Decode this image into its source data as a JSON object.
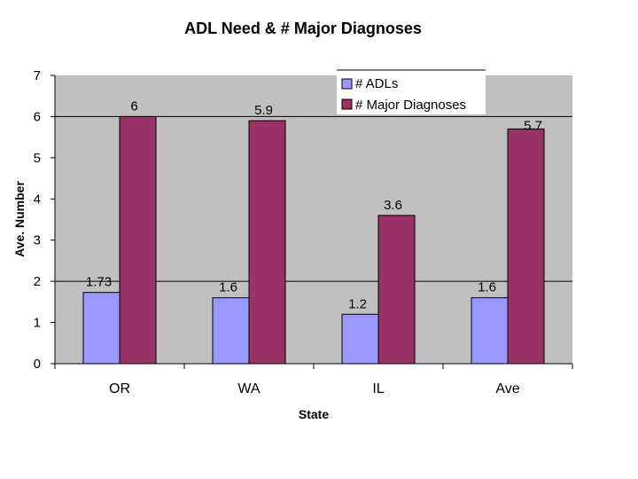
{
  "chart_data": {
    "type": "bar",
    "title": "ADL Need & # Major Diagnoses",
    "xlabel": "State",
    "ylabel": "Ave. Number",
    "categories": [
      "OR",
      "WA",
      "IL",
      "Ave"
    ],
    "series": [
      {
        "name": "# ADLs",
        "values": [
          1.73,
          1.6,
          1.2,
          1.6
        ],
        "labels": [
          "1.73",
          "1.6",
          "1.2",
          "1.6"
        ],
        "color": "#9999ff"
      },
      {
        "name": "# Major Diagnoses",
        "values": [
          6,
          5.9,
          3.6,
          5.7
        ],
        "labels": [
          "6",
          "5.9",
          "3.6",
          "5.7"
        ],
        "color": "#993366"
      }
    ],
    "ylim": [
      0,
      7
    ],
    "yticks": [
      "0",
      "1",
      "2",
      "3",
      "4",
      "5",
      "6",
      "7"
    ],
    "gridlines": [
      2,
      6
    ],
    "legend": "top-right",
    "plot_background": "#c0c0c0"
  }
}
